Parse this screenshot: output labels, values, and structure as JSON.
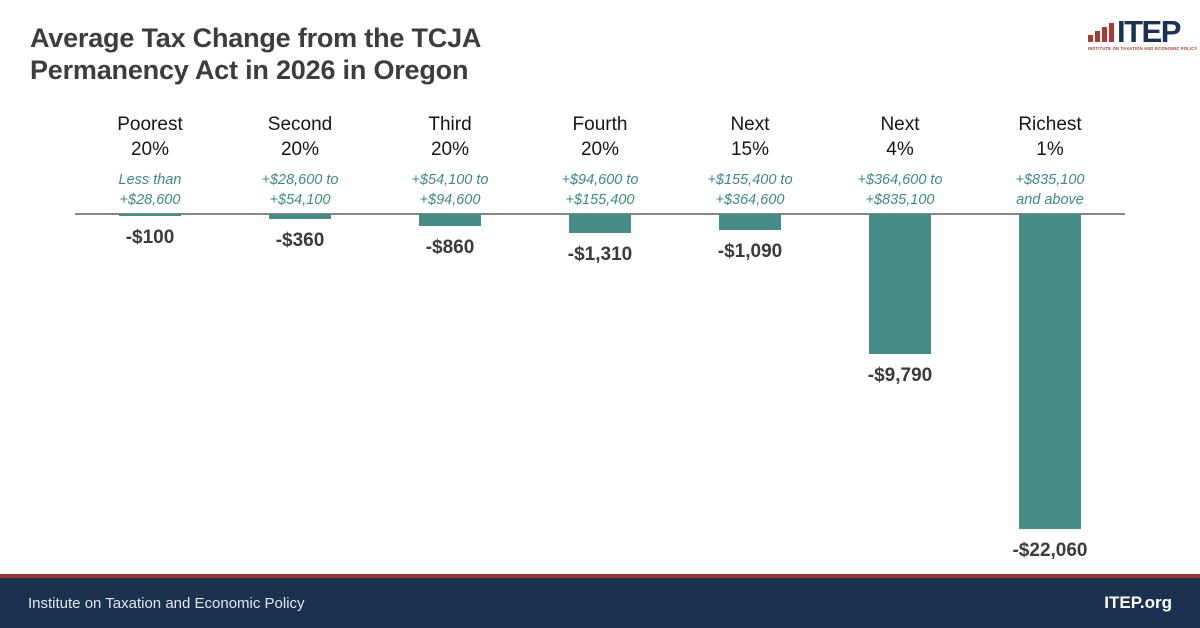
{
  "header": {
    "title_line1": "Average Tax Change from the TCJA",
    "title_line2": "Permanency Act in 2026 in Oregon"
  },
  "logo": {
    "name": "ITEP",
    "tagline": "INSTITUTE ON TAXATION AND ECONOMIC POLICY"
  },
  "footer": {
    "left_text": "Institute on Taxation and Economic Policy",
    "right_text": "ITEP.org"
  },
  "colors": {
    "bar": "#478b89",
    "range_text": "#3e8a88",
    "title_text": "#3d3d3d",
    "value_label": "#3b3b3b",
    "axis_line": "#878787",
    "footer_bg": "#1b3150",
    "footer_accent": "#9d3533",
    "logo_red": "#a93b36",
    "logo_navy": "#1b3150"
  },
  "chart_data": {
    "type": "bar",
    "title": "Average Tax Change from the TCJA Permanency Act in 2026 in Oregon",
    "orientation": "vertical",
    "unit": "USD",
    "grid": false,
    "legend": false,
    "ylim": [
      -23000,
      0
    ],
    "categories": [
      "Poorest 20%",
      "Second 20%",
      "Third 20%",
      "Fourth 20%",
      "Next 15%",
      "Next 4%",
      "Richest 1%"
    ],
    "values": [
      -100,
      -360,
      -860,
      -1310,
      -1090,
      -9790,
      -22060
    ],
    "columns": [
      {
        "name_line1": "Poorest",
        "name_line2": "20%",
        "range_line1": "Less than",
        "range_line2": "+$28,600",
        "value": -100,
        "value_label": "-$100"
      },
      {
        "name_line1": "Second",
        "name_line2": "20%",
        "range_line1": "+$28,600 to",
        "range_line2": "+$54,100",
        "value": -360,
        "value_label": "-$360"
      },
      {
        "name_line1": "Third",
        "name_line2": "20%",
        "range_line1": "+$54,100 to",
        "range_line2": "+$94,600",
        "value": -860,
        "value_label": "-$860"
      },
      {
        "name_line1": "Fourth",
        "name_line2": "20%",
        "range_line1": "+$94,600 to",
        "range_line2": "+$155,400",
        "value": -1310,
        "value_label": "-$1,310"
      },
      {
        "name_line1": "Next",
        "name_line2": "15%",
        "range_line1": "+$155,400 to",
        "range_line2": "+$364,600",
        "value": -1090,
        "value_label": "-$1,090"
      },
      {
        "name_line1": "Next",
        "name_line2": "4%",
        "range_line1": "+$364,600 to",
        "range_line2": "+$835,100",
        "value": -9790,
        "value_label": "-$9,790"
      },
      {
        "name_line1": "Richest",
        "name_line2": "1%",
        "range_line1": "+$835,100",
        "range_line2": "and above",
        "value": -22060,
        "value_label": "-$22,060"
      }
    ]
  }
}
